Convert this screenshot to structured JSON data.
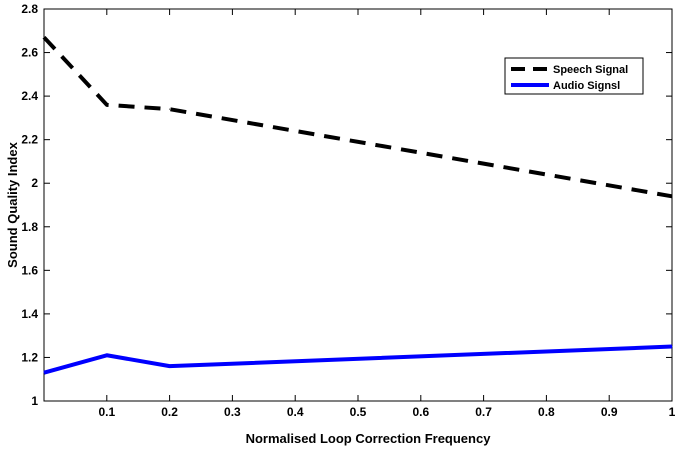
{
  "chart_data": {
    "type": "line",
    "title": "",
    "xlabel": "Normalised Loop Correction Frequency",
    "ylabel": "Sound Quality Index",
    "xlim": [
      0,
      1
    ],
    "ylim": [
      1,
      2.8
    ],
    "x": [
      0,
      0.1,
      0.2,
      1
    ],
    "xticks": [
      "0.1",
      "0.2",
      "0.3",
      "0.4",
      "0.5",
      "0.6",
      "0.7",
      "0.8",
      "0.9",
      "1"
    ],
    "yticks": [
      "1",
      "1.2",
      "1.4",
      "1.6",
      "1.8",
      "2",
      "2.2",
      "2.4",
      "2.6",
      "2.8"
    ],
    "series": [
      {
        "name": "Speech Signal",
        "values": [
          2.67,
          2.36,
          2.34,
          1.94
        ],
        "color": "#000000",
        "style": "dashed"
      },
      {
        "name": "Audio Signsl",
        "values": [
          1.13,
          1.21,
          1.16,
          1.25
        ],
        "color": "#0000ff",
        "style": "solid"
      }
    ],
    "grid": false,
    "legend_position": "top-right"
  }
}
